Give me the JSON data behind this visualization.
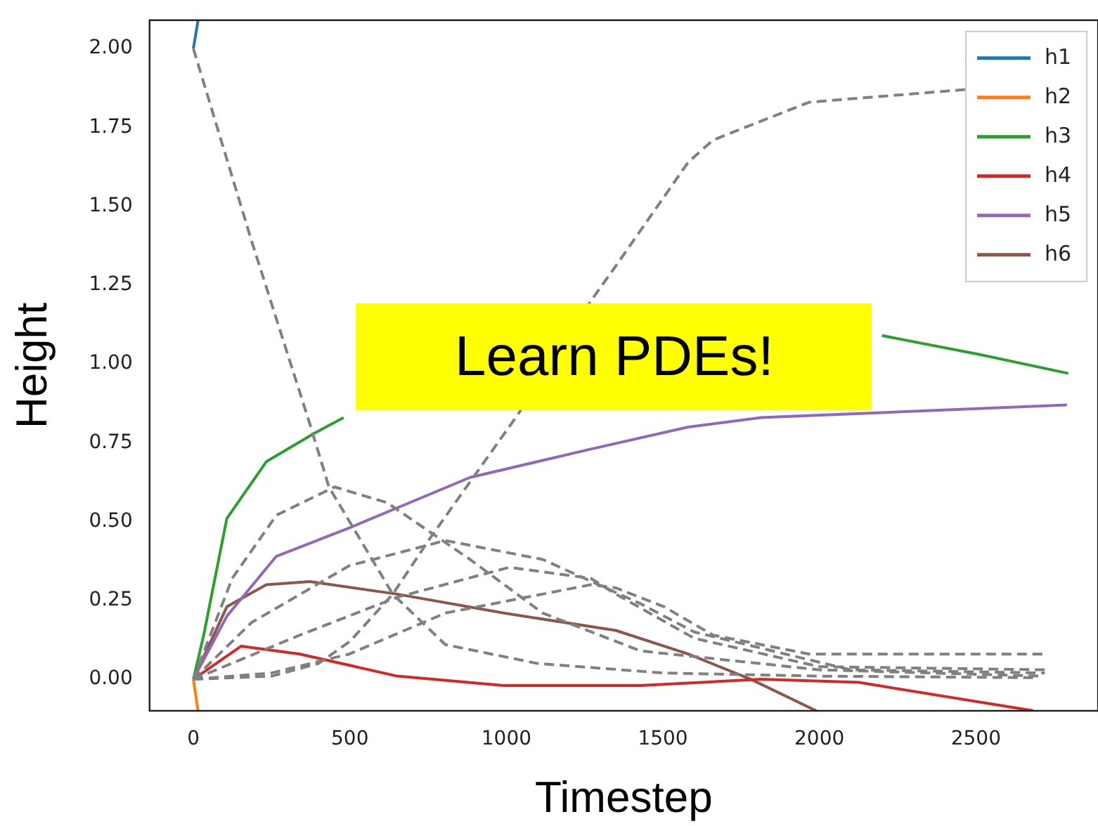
{
  "chart_data": {
    "type": "line",
    "xlabel": "Timestep",
    "ylabel": "Height",
    "legend": "top right",
    "marker": "none",
    "annotations": [
      "Learn PDEs!"
    ],
    "xlim": [
      -140,
      2890
    ],
    "xticks": [
      0,
      500,
      1000,
      1500,
      2000,
      2500
    ],
    "ylim": [
      -0.1,
      2.09
    ],
    "yticks": [
      {
        "value": 0,
        "label": "0.00"
      },
      {
        "value": 0.25,
        "label": "0.25"
      },
      {
        "value": 0.5,
        "label": "0.50"
      },
      {
        "value": 0.75,
        "label": "0.75"
      },
      {
        "value": 1,
        "label": "1.00"
      },
      {
        "value": 1.25,
        "label": "1.25"
      },
      {
        "value": 1.5,
        "label": "1.50"
      },
      {
        "value": 1.75,
        "label": "1.75"
      },
      {
        "value": 2,
        "label": "2.00"
      }
    ],
    "series": [
      {
        "line_style": "dashed",
        "color": "#808080",
        "x": [
          0,
          186,
          372,
          433,
          637,
          805,
          1100,
          1500,
          2000,
          2700
        ],
        "values": [
          2.0,
          1.39,
          0.81,
          0.61,
          0.27,
          0.11,
          0.05,
          0.02,
          0.01,
          0.005
        ]
      },
      {
        "line_style": "dashed",
        "color": "#808080",
        "x": [
          0,
          250,
          400,
          500,
          637,
          758,
          1037,
          1270,
          1349,
          1581,
          1660,
          1967,
          2465
        ],
        "values": [
          0,
          0.01,
          0.05,
          0.12,
          0.27,
          0.45,
          0.84,
          1.2,
          1.31,
          1.64,
          1.71,
          1.83,
          1.87
        ]
      },
      {
        "line_style": "dashed",
        "color": "#808080",
        "x": [
          0,
          124,
          265,
          451,
          619,
          884,
          1116,
          1428,
          2000,
          2710
        ],
        "values": [
          0,
          0.32,
          0.52,
          0.61,
          0.56,
          0.38,
          0.21,
          0.09,
          0.03,
          0.01
        ]
      },
      {
        "line_style": "dashed",
        "color": "#808080",
        "x": [
          0,
          186,
          498,
          805,
          1116,
          1428,
          1600,
          2100,
          2720
        ],
        "values": [
          0,
          0.18,
          0.36,
          0.44,
          0.38,
          0.24,
          0.15,
          0.03,
          0.02
        ]
      },
      {
        "line_style": "dashed",
        "color": "#808080",
        "x": [
          0,
          340,
          651,
          1009,
          1270,
          1350,
          1600,
          2000,
          2730
        ],
        "values": [
          0,
          0.14,
          0.26,
          0.355,
          0.32,
          0.27,
          0.13,
          0.04,
          0.03
        ]
      },
      {
        "line_style": "dashed",
        "color": "#808080",
        "x": [
          0,
          250,
          498,
          805,
          1270,
          1349,
          1504,
          1660,
          1967,
          2712
        ],
        "values": [
          0,
          0.02,
          0.08,
          0.21,
          0.3,
          0.29,
          0.23,
          0.14,
          0.08,
          0.08
        ]
      },
      {
        "name": "h1",
        "color": "#1f77b4",
        "x": [
          0,
          15
        ],
        "values": [
          2.0,
          2.09
        ]
      },
      {
        "name": "h2",
        "color": "#ff7f0e",
        "x": [
          0,
          15
        ],
        "values": [
          0,
          -0.1
        ]
      },
      {
        "name": "h3",
        "color": "#2ca02c",
        "x": [
          0,
          33,
          107,
          233,
          386,
          480,
          1300,
          2200,
          2512,
          2795
        ],
        "values": [
          0,
          0.14,
          0.51,
          0.69,
          0.78,
          0.83,
          null,
          1.09,
          1.03,
          0.97
        ]
      },
      {
        "name": "h4",
        "color": "#d62728",
        "x": [
          0,
          153,
          340,
          651,
          991,
          1428,
          1814,
          2126,
          2684
        ],
        "values": [
          0,
          0.105,
          0.08,
          0.01,
          -0.02,
          -0.02,
          0,
          -0.01,
          -0.1
        ]
      },
      {
        "name": "h5",
        "color": "#9467bd",
        "x": [
          0,
          107,
          265,
          498,
          884,
          1270,
          1581,
          1814,
          2791
        ],
        "values": [
          0,
          0.2,
          0.39,
          0.48,
          0.64,
          0.73,
          0.8,
          0.83,
          0.87
        ]
      },
      {
        "name": "h6",
        "color": "#8c564b",
        "x": [
          0,
          107,
          233,
          372,
          651,
          991,
          1349,
          1581,
          1781,
          1990
        ],
        "values": [
          0,
          0.23,
          0.3,
          0.31,
          0.27,
          0.21,
          0.155,
          0.08,
          0,
          -0.1
        ]
      }
    ]
  }
}
